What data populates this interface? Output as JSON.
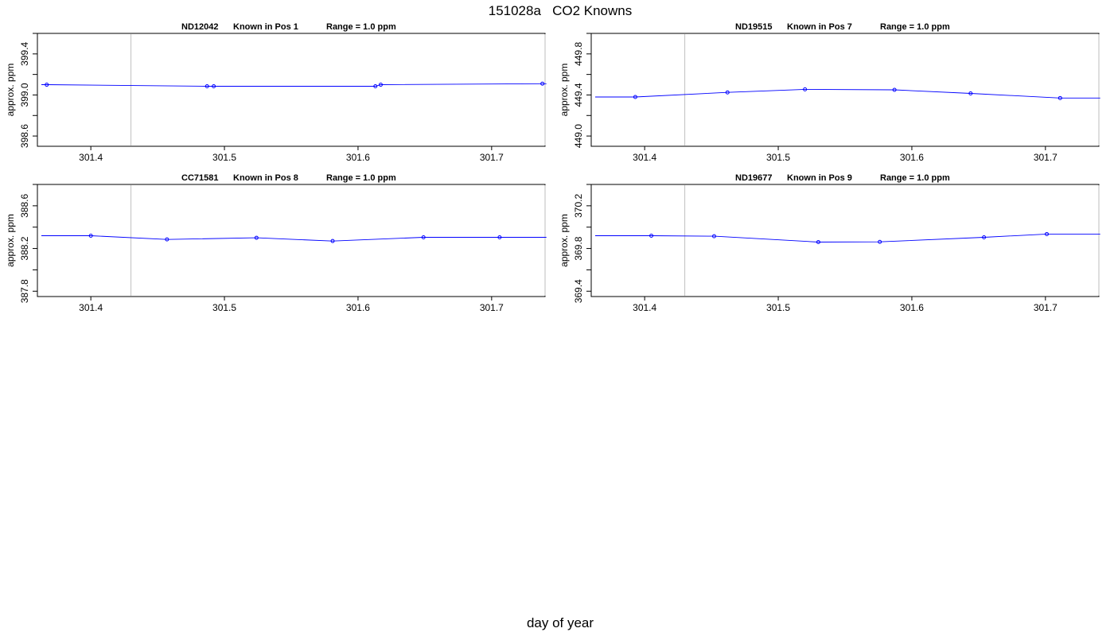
{
  "title": "151028a   CO2 Knowns",
  "xlabel": "day of year",
  "colors": {
    "series": "#0000ff",
    "vline": "#c8c8c8",
    "axis": "#000000"
  },
  "chart_data": [
    {
      "type": "line",
      "subtitle": {
        "tank": "ND12042",
        "position": "Known in Pos 1",
        "range": "Range = 1.0 ppm"
      },
      "ylabel": "approx. ppm",
      "xlim": [
        301.36,
        301.74
      ],
      "ylim": [
        398.5,
        399.6
      ],
      "xticks": [
        "301.4",
        "301.5",
        "301.6",
        "301.7"
      ],
      "yticks": [
        "398.6",
        "399.0",
        "399.4"
      ],
      "vlines": [
        301.43,
        301.74
      ],
      "points": [
        [
          301.367,
          399.1
        ],
        [
          301.487,
          399.085
        ],
        [
          301.492,
          399.085
        ],
        [
          301.613,
          399.085
        ],
        [
          301.617,
          399.1
        ],
        [
          301.738,
          399.11
        ]
      ],
      "line": [
        [
          301.363,
          399.1
        ],
        [
          301.367,
          399.1
        ],
        [
          301.487,
          399.085
        ],
        [
          301.492,
          399.085
        ],
        [
          301.613,
          399.085
        ],
        [
          301.617,
          399.1
        ],
        [
          301.738,
          399.11
        ],
        [
          301.741,
          399.11
        ]
      ]
    },
    {
      "type": "line",
      "subtitle": {
        "tank": "ND19515",
        "position": "Known in Pos 7",
        "range": "Range = 1.0 ppm"
      },
      "ylabel": "approx. ppm",
      "xlim": [
        301.36,
        301.74
      ],
      "ylim": [
        448.9,
        450.0
      ],
      "xticks": [
        "301.4",
        "301.5",
        "301.6",
        "301.7"
      ],
      "yticks": [
        "449.0",
        "449.4",
        "449.8"
      ],
      "vlines": [
        301.43,
        301.74
      ],
      "points": [
        [
          301.393,
          449.38
        ],
        [
          301.462,
          449.425
        ],
        [
          301.52,
          449.455
        ],
        [
          301.587,
          449.45
        ],
        [
          301.644,
          449.415
        ],
        [
          301.711,
          449.37
        ]
      ],
      "line": [
        [
          301.363,
          449.38
        ],
        [
          301.393,
          449.38
        ],
        [
          301.462,
          449.425
        ],
        [
          301.52,
          449.455
        ],
        [
          301.587,
          449.45
        ],
        [
          301.644,
          449.415
        ],
        [
          301.711,
          449.37
        ],
        [
          301.741,
          449.37
        ]
      ]
    },
    {
      "type": "line",
      "subtitle": {
        "tank": "CC71581",
        "position": "Known in Pos 8",
        "range": "Range = 1.0 ppm"
      },
      "ylabel": "approx. ppm",
      "xlim": [
        301.36,
        301.74
      ],
      "ylim": [
        387.75,
        388.8
      ],
      "xticks": [
        "301.4",
        "301.5",
        "301.6",
        "301.7"
      ],
      "yticks": [
        "387.8",
        "388.2",
        "388.6"
      ],
      "vlines": [
        301.43,
        301.74
      ],
      "points": [
        [
          301.4,
          388.32
        ],
        [
          301.457,
          388.285
        ],
        [
          301.524,
          388.3
        ],
        [
          301.581,
          388.27
        ],
        [
          301.649,
          388.305
        ],
        [
          301.706,
          388.305
        ]
      ],
      "line": [
        [
          301.363,
          388.32
        ],
        [
          301.4,
          388.32
        ],
        [
          301.457,
          388.285
        ],
        [
          301.524,
          388.3
        ],
        [
          301.581,
          388.27
        ],
        [
          301.649,
          388.305
        ],
        [
          301.706,
          388.305
        ],
        [
          301.741,
          388.305
        ]
      ]
    },
    {
      "type": "line",
      "subtitle": {
        "tank": "ND19677",
        "position": "Known in Pos 9",
        "range": "Range = 1.0 ppm"
      },
      "ylabel": "approx. ppm",
      "xlim": [
        301.36,
        301.74
      ],
      "ylim": [
        369.35,
        370.4
      ],
      "xticks": [
        "301.4",
        "301.5",
        "301.6",
        "301.7"
      ],
      "yticks": [
        "369.4",
        "369.8",
        "370.2"
      ],
      "vlines": [
        301.43,
        301.74
      ],
      "points": [
        [
          301.405,
          369.92
        ],
        [
          301.452,
          369.915
        ],
        [
          301.53,
          369.86
        ],
        [
          301.576,
          369.862
        ],
        [
          301.654,
          369.905
        ],
        [
          301.701,
          369.935
        ]
      ],
      "line": [
        [
          301.363,
          369.92
        ],
        [
          301.405,
          369.92
        ],
        [
          301.452,
          369.915
        ],
        [
          301.53,
          369.86
        ],
        [
          301.576,
          369.862
        ],
        [
          301.654,
          369.905
        ],
        [
          301.701,
          369.935
        ],
        [
          301.741,
          369.935
        ]
      ]
    }
  ]
}
